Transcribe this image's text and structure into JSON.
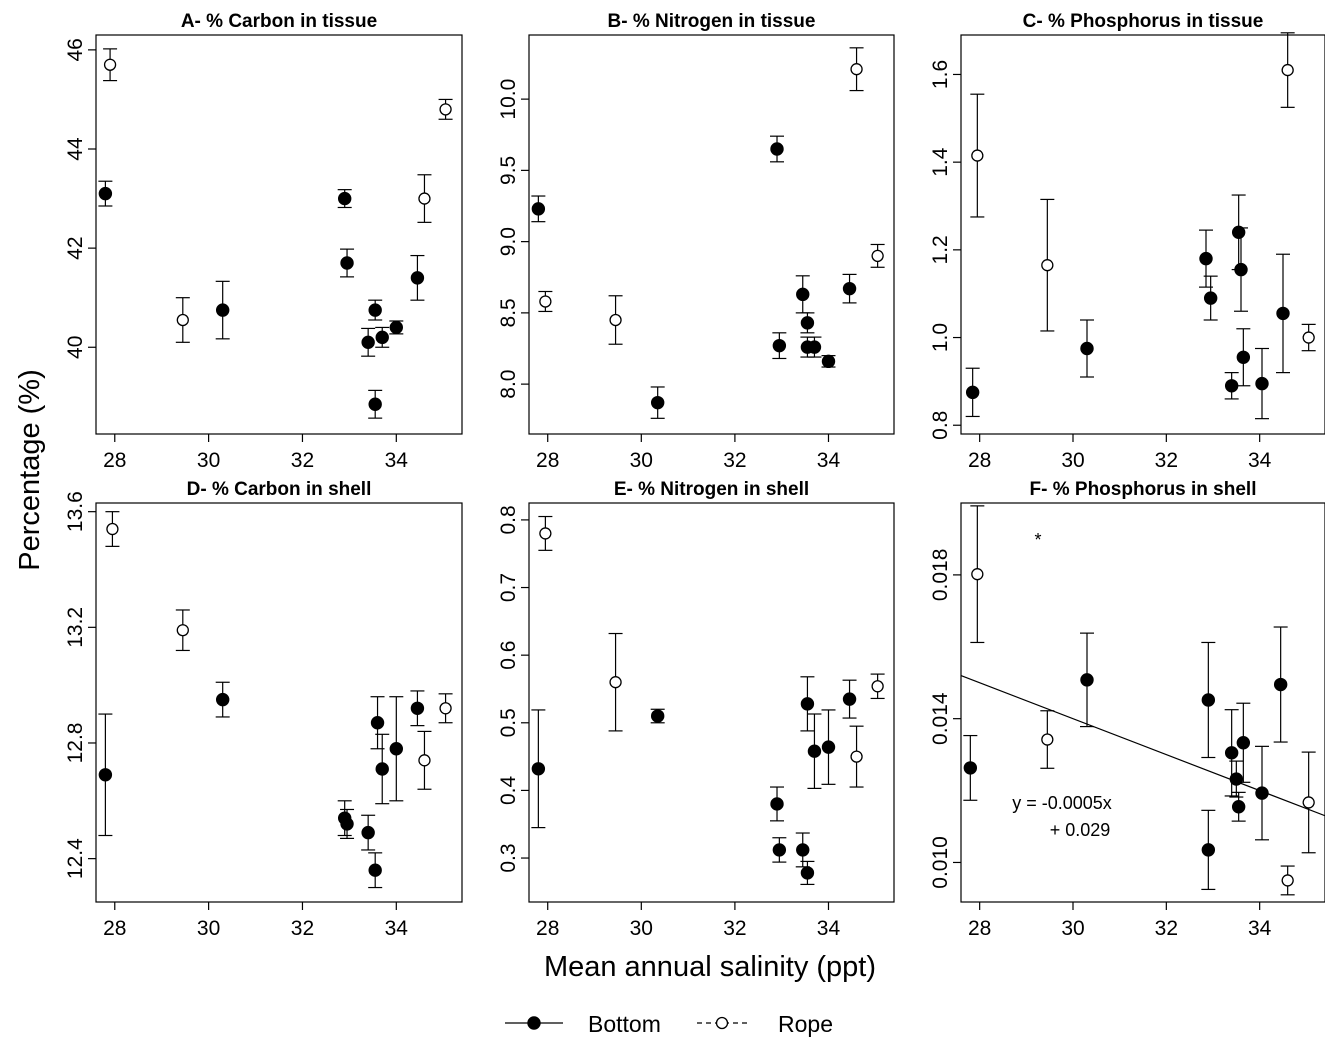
{
  "figure": {
    "ylabel": "Percentage (%)",
    "xlabel": "Mean annual salinity (ppt)",
    "legend": {
      "position": "bottom-center",
      "items": [
        {
          "label": "Bottom",
          "marker": "filled-circle",
          "line": "solid"
        },
        {
          "label": "Rope",
          "marker": "open-circle",
          "line": "dashed"
        }
      ]
    }
  },
  "chart_data": [
    {
      "type": "scatter",
      "title": "A- % Carbon in tissue",
      "xlim": [
        27.6,
        35.4
      ],
      "ylim": [
        38.25,
        46.3
      ],
      "xticks": [
        28,
        30,
        32,
        34
      ],
      "yticks": [
        40,
        42,
        44,
        46
      ],
      "ytick_labels": [
        "40",
        "42",
        "44",
        "46"
      ],
      "series": [
        {
          "name": "Bottom",
          "marker": "filled",
          "points": [
            {
              "x": 27.8,
              "y": 43.1,
              "err": 0.25
            },
            {
              "x": 30.3,
              "y": 40.75,
              "err": 0.58
            },
            {
              "x": 32.9,
              "y": 43.0,
              "err": 0.18
            },
            {
              "x": 32.95,
              "y": 41.7,
              "err": 0.28
            },
            {
              "x": 33.4,
              "y": 40.1,
              "err": 0.28
            },
            {
              "x": 33.55,
              "y": 38.85,
              "err": 0.28
            },
            {
              "x": 33.55,
              "y": 40.75,
              "err": 0.2
            },
            {
              "x": 33.7,
              "y": 40.2,
              "err": 0.2
            },
            {
              "x": 34.0,
              "y": 40.4,
              "err": 0.13
            },
            {
              "x": 34.45,
              "y": 41.4,
              "err": 0.45
            }
          ]
        },
        {
          "name": "Rope",
          "marker": "open",
          "points": [
            {
              "x": 27.9,
              "y": 45.7,
              "err": 0.32
            },
            {
              "x": 29.45,
              "y": 40.55,
              "err": 0.45
            },
            {
              "x": 34.6,
              "y": 43.0,
              "err": 0.48
            },
            {
              "x": 35.05,
              "y": 44.8,
              "err": 0.2
            }
          ]
        }
      ]
    },
    {
      "type": "scatter",
      "title": "B- % Nitrogen in tissue",
      "xlim": [
        27.6,
        35.4
      ],
      "ylim": [
        7.65,
        10.45
      ],
      "xticks": [
        28,
        30,
        32,
        34
      ],
      "yticks": [
        8.0,
        8.5,
        9.0,
        9.5,
        10.0
      ],
      "ytick_labels": [
        "8.0",
        "8.5",
        "9.0",
        "9.5",
        "10.0"
      ],
      "series": [
        {
          "name": "Bottom",
          "marker": "filled",
          "points": [
            {
              "x": 27.8,
              "y": 9.23,
              "err": 0.09
            },
            {
              "x": 30.35,
              "y": 7.87,
              "err": 0.11
            },
            {
              "x": 32.9,
              "y": 9.65,
              "err": 0.09
            },
            {
              "x": 32.95,
              "y": 8.27,
              "err": 0.09
            },
            {
              "x": 33.45,
              "y": 8.63,
              "err": 0.13
            },
            {
              "x": 33.55,
              "y": 8.43,
              "err": 0.07
            },
            {
              "x": 33.55,
              "y": 8.26,
              "err": 0.07
            },
            {
              "x": 33.7,
              "y": 8.26,
              "err": 0.07
            },
            {
              "x": 34.0,
              "y": 8.16,
              "err": 0.04
            },
            {
              "x": 34.45,
              "y": 8.67,
              "err": 0.1
            }
          ]
        },
        {
          "name": "Rope",
          "marker": "open",
          "points": [
            {
              "x": 27.95,
              "y": 8.58,
              "err": 0.07
            },
            {
              "x": 29.45,
              "y": 8.45,
              "err": 0.17
            },
            {
              "x": 34.6,
              "y": 10.21,
              "err": 0.15
            },
            {
              "x": 35.05,
              "y": 8.9,
              "err": 0.08
            }
          ]
        }
      ]
    },
    {
      "type": "scatter",
      "title": "C- % Phosphorus in tissue",
      "xlim": [
        27.6,
        35.4
      ],
      "ylim": [
        0.78,
        1.69
      ],
      "xticks": [
        28,
        30,
        32,
        34
      ],
      "yticks": [
        0.8,
        1.0,
        1.2,
        1.4,
        1.6
      ],
      "ytick_labels": [
        "0.8",
        "1.0",
        "1.2",
        "1.4",
        "1.6"
      ],
      "series": [
        {
          "name": "Bottom",
          "marker": "filled",
          "points": [
            {
              "x": 27.85,
              "y": 0.875,
              "err": 0.055
            },
            {
              "x": 30.3,
              "y": 0.975,
              "err": 0.065
            },
            {
              "x": 32.85,
              "y": 1.18,
              "err": 0.065
            },
            {
              "x": 32.95,
              "y": 1.09,
              "err": 0.05
            },
            {
              "x": 33.4,
              "y": 0.89,
              "err": 0.03
            },
            {
              "x": 33.55,
              "y": 1.24,
              "err": 0.085
            },
            {
              "x": 33.6,
              "y": 1.155,
              "err": 0.095
            },
            {
              "x": 33.65,
              "y": 0.955,
              "err": 0.065
            },
            {
              "x": 34.05,
              "y": 0.895,
              "err": 0.08
            },
            {
              "x": 34.5,
              "y": 1.055,
              "err": 0.135
            }
          ]
        },
        {
          "name": "Rope",
          "marker": "open",
          "points": [
            {
              "x": 27.95,
              "y": 1.415,
              "err": 0.14
            },
            {
              "x": 29.45,
              "y": 1.165,
              "err": 0.15
            },
            {
              "x": 34.6,
              "y": 1.61,
              "err": 0.085
            },
            {
              "x": 35.05,
              "y": 1.0,
              "err": 0.03
            }
          ]
        }
      ]
    },
    {
      "type": "scatter",
      "title": "D- % Carbon in shell",
      "xlim": [
        27.6,
        35.4
      ],
      "ylim": [
        12.25,
        13.63
      ],
      "xticks": [
        28,
        30,
        32,
        34
      ],
      "yticks": [
        12.4,
        12.8,
        13.2,
        13.6
      ],
      "ytick_labels": [
        "12.4",
        "12.8",
        "13.2",
        "13.6"
      ],
      "series": [
        {
          "name": "Bottom",
          "marker": "filled",
          "points": [
            {
              "x": 27.8,
              "y": 12.69,
              "err": 0.21
            },
            {
              "x": 30.3,
              "y": 12.95,
              "err": 0.06
            },
            {
              "x": 32.9,
              "y": 12.54,
              "err": 0.06
            },
            {
              "x": 32.95,
              "y": 12.52,
              "err": 0.05
            },
            {
              "x": 33.4,
              "y": 12.49,
              "err": 0.06
            },
            {
              "x": 33.55,
              "y": 12.36,
              "err": 0.06
            },
            {
              "x": 33.6,
              "y": 12.87,
              "err": 0.09
            },
            {
              "x": 33.7,
              "y": 12.71,
              "err": 0.12
            },
            {
              "x": 34.0,
              "y": 12.78,
              "err": 0.18
            },
            {
              "x": 34.45,
              "y": 12.92,
              "err": 0.06
            }
          ]
        },
        {
          "name": "Rope",
          "marker": "open",
          "points": [
            {
              "x": 27.95,
              "y": 13.54,
              "err": 0.06
            },
            {
              "x": 29.45,
              "y": 13.19,
              "err": 0.07
            },
            {
              "x": 34.6,
              "y": 12.74,
              "err": 0.1
            },
            {
              "x": 35.05,
              "y": 12.92,
              "err": 0.05
            }
          ]
        }
      ]
    },
    {
      "type": "scatter",
      "title": "E- % Nitrogen in shell",
      "xlim": [
        27.6,
        35.4
      ],
      "ylim": [
        0.235,
        0.825
      ],
      "xticks": [
        28,
        30,
        32,
        34
      ],
      "yticks": [
        0.3,
        0.4,
        0.5,
        0.6,
        0.7,
        0.8
      ],
      "ytick_labels": [
        "0.3",
        "0.4",
        "0.5",
        "0.6",
        "0.7",
        "0.8"
      ],
      "series": [
        {
          "name": "Bottom",
          "marker": "filled",
          "points": [
            {
              "x": 27.8,
              "y": 0.432,
              "err": 0.087
            },
            {
              "x": 30.35,
              "y": 0.51,
              "err": 0.01
            },
            {
              "x": 32.9,
              "y": 0.38,
              "err": 0.025
            },
            {
              "x": 32.95,
              "y": 0.312,
              "err": 0.018
            },
            {
              "x": 33.45,
              "y": 0.312,
              "err": 0.025
            },
            {
              "x": 33.55,
              "y": 0.278,
              "err": 0.017
            },
            {
              "x": 33.55,
              "y": 0.528,
              "err": 0.04
            },
            {
              "x": 33.7,
              "y": 0.458,
              "err": 0.055
            },
            {
              "x": 34.0,
              "y": 0.464,
              "err": 0.055
            },
            {
              "x": 34.45,
              "y": 0.535,
              "err": 0.028
            }
          ]
        },
        {
          "name": "Rope",
          "marker": "open",
          "points": [
            {
              "x": 27.95,
              "y": 0.78,
              "err": 0.025
            },
            {
              "x": 29.45,
              "y": 0.56,
              "err": 0.072
            },
            {
              "x": 34.6,
              "y": 0.45,
              "err": 0.045
            },
            {
              "x": 35.05,
              "y": 0.554,
              "err": 0.018
            }
          ]
        }
      ]
    },
    {
      "type": "scatter",
      "title": "F- % Phosphorus in shell",
      "annotations": [
        "*",
        "y = -0.0005x",
        "+ 0.029"
      ],
      "xlim": [
        27.6,
        35.4
      ],
      "ylim": [
        0.0089,
        0.02
      ],
      "xticks": [
        28,
        30,
        32,
        34
      ],
      "yticks": [
        0.01,
        0.014,
        0.018
      ],
      "ytick_labels": [
        "0.010",
        "0.014",
        "0.018"
      ],
      "regression": {
        "slope": -0.0005,
        "intercept": 0.029,
        "x_from": 27.6,
        "x_to": 35.4
      },
      "series": [
        {
          "name": "Bottom",
          "marker": "filled",
          "points": [
            {
              "x": 27.8,
              "y": 0.01263,
              "err": 0.0009
            },
            {
              "x": 30.3,
              "y": 0.01508,
              "err": 0.0013
            },
            {
              "x": 32.9,
              "y": 0.01452,
              "err": 0.0016
            },
            {
              "x": 32.9,
              "y": 0.01035,
              "err": 0.0011
            },
            {
              "x": 33.4,
              "y": 0.01305,
              "err": 0.0012
            },
            {
              "x": 33.5,
              "y": 0.01232,
              "err": 0.0005
            },
            {
              "x": 33.55,
              "y": 0.01155,
              "err": 0.0004
            },
            {
              "x": 33.65,
              "y": 0.01333,
              "err": 0.0011
            },
            {
              "x": 34.05,
              "y": 0.01193,
              "err": 0.0013
            },
            {
              "x": 34.45,
              "y": 0.01495,
              "err": 0.0016
            }
          ]
        },
        {
          "name": "Rope",
          "marker": "open",
          "points": [
            {
              "x": 27.95,
              "y": 0.01802,
              "err": 0.0019
            },
            {
              "x": 29.45,
              "y": 0.01342,
              "err": 0.0008
            },
            {
              "x": 34.6,
              "y": 0.0095,
              "err": 0.0004
            },
            {
              "x": 35.05,
              "y": 0.01167,
              "err": 0.0014
            }
          ]
        }
      ]
    }
  ]
}
